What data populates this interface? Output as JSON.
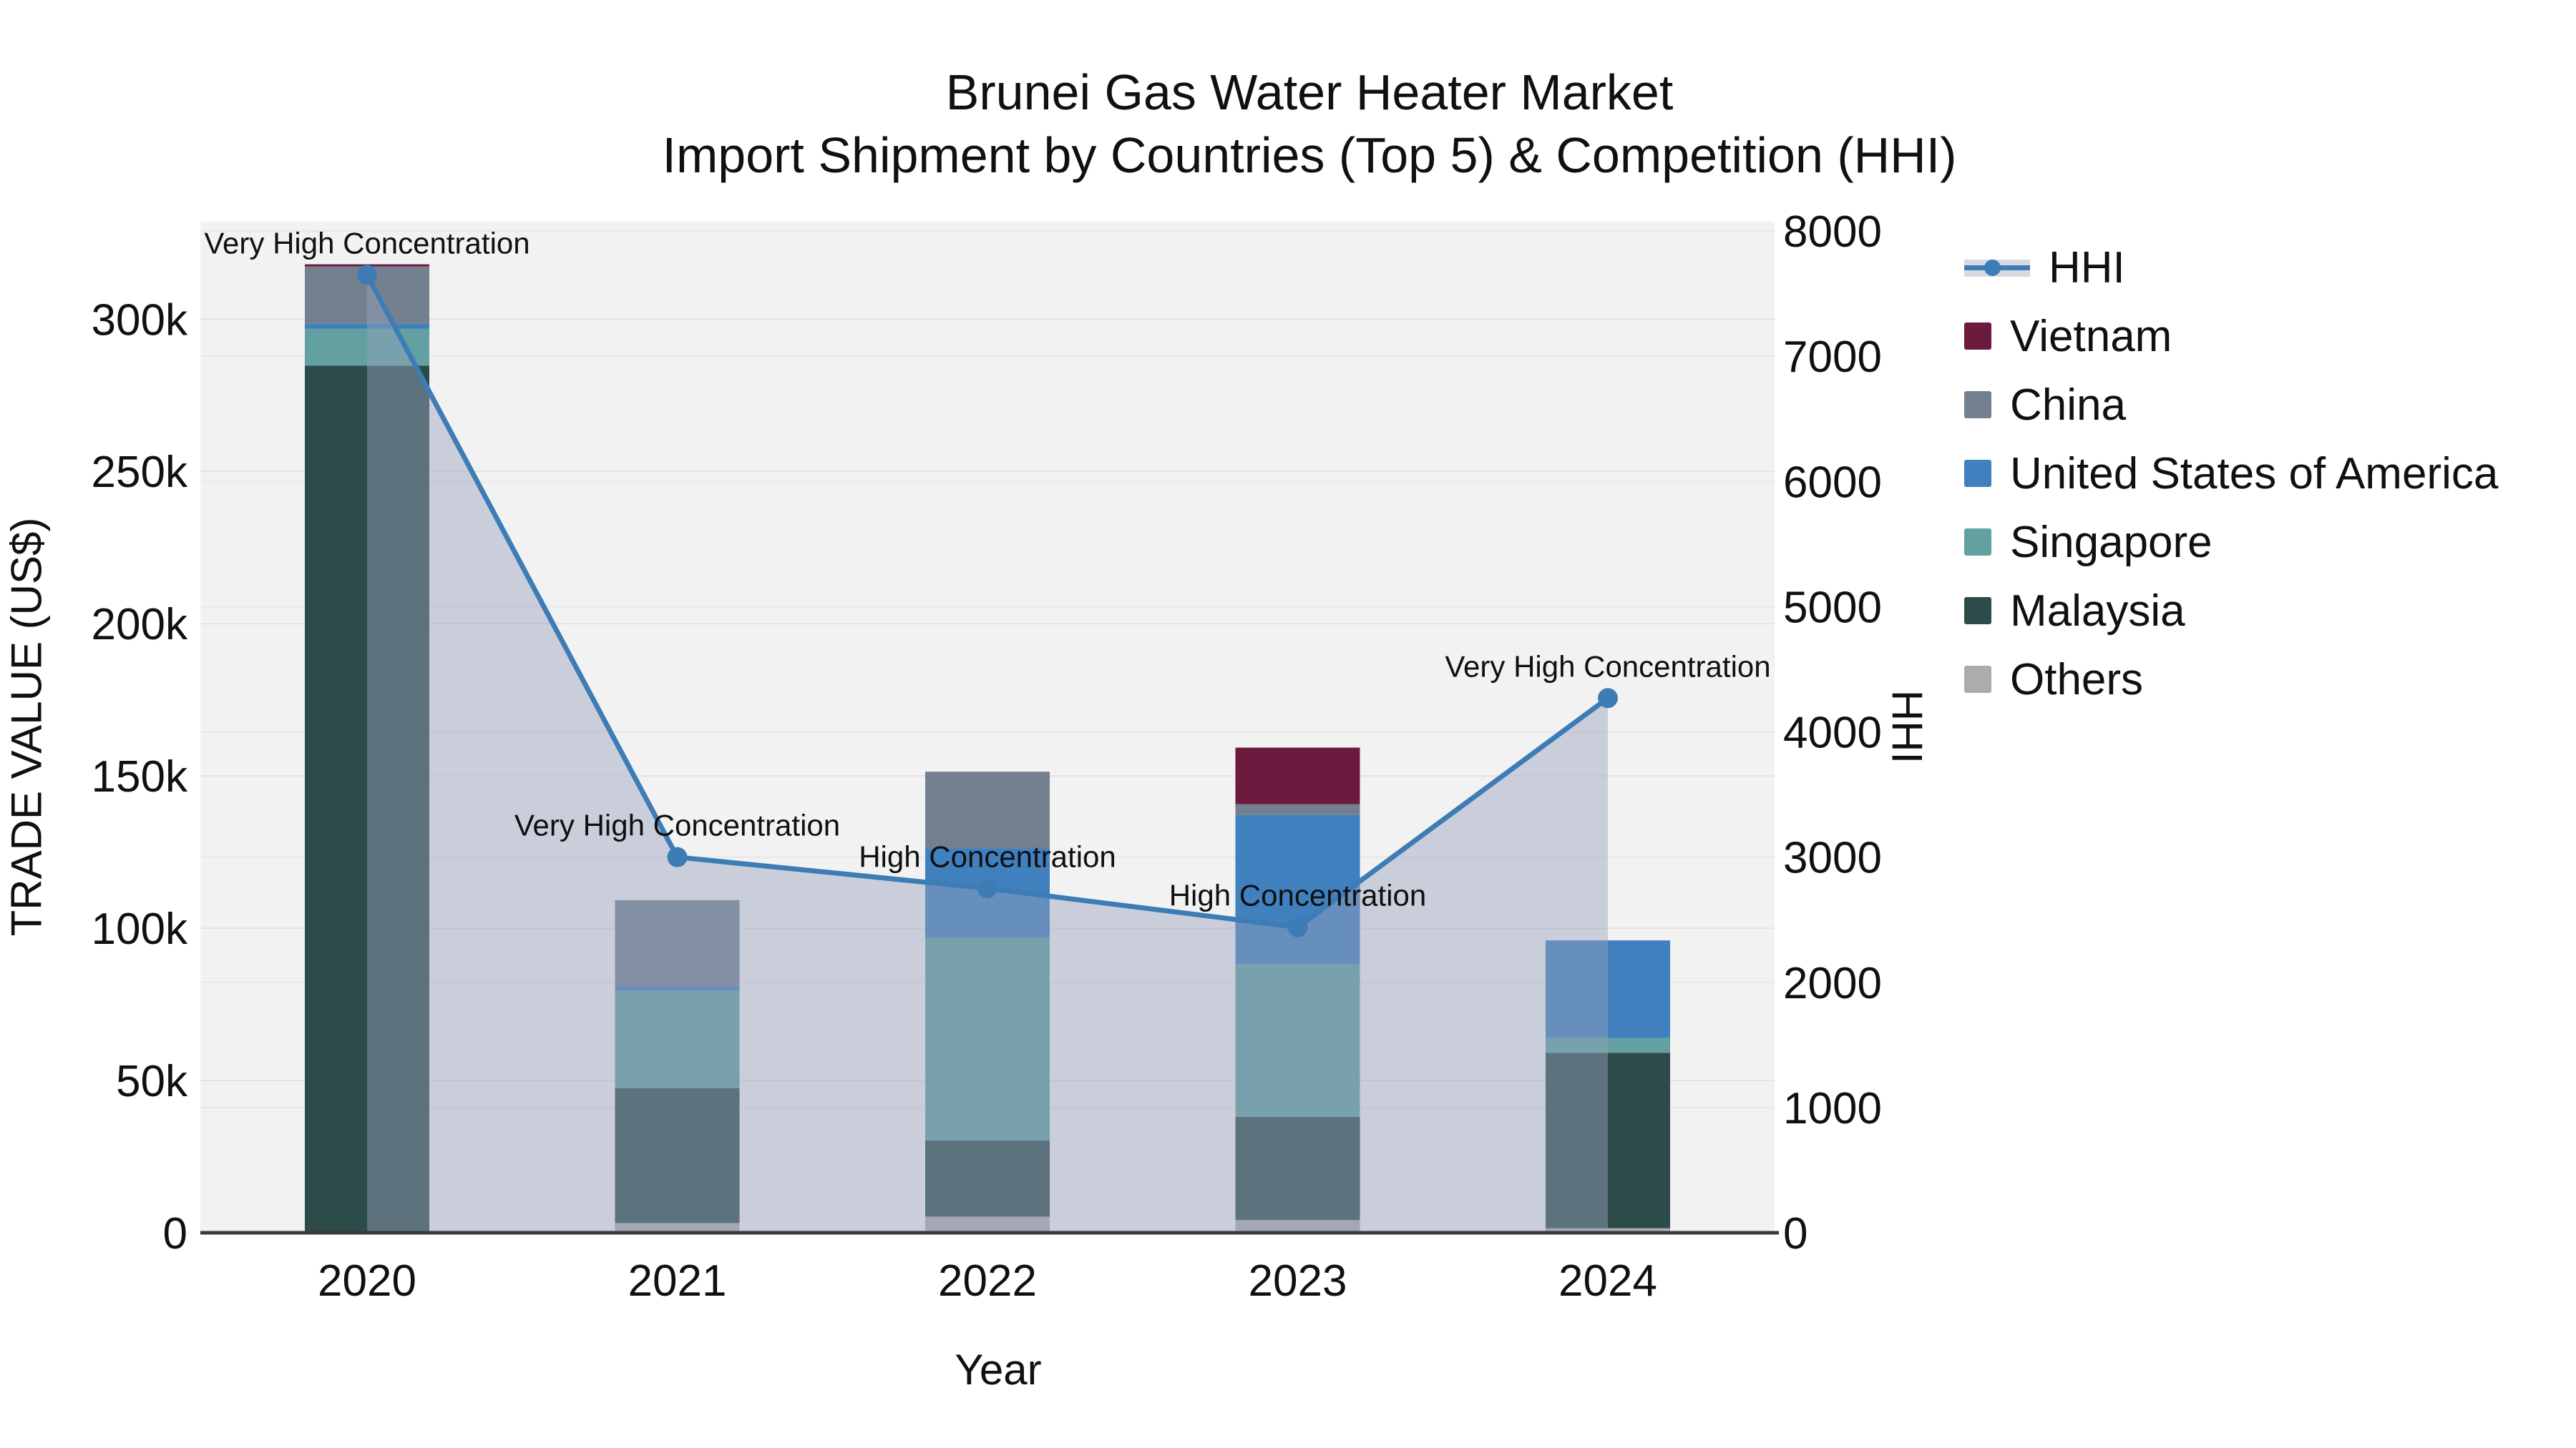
{
  "title": {
    "line1": "Brunei Gas Water Heater Market",
    "line2": "Import Shipment by Countries (Top 5) & Competition (HHI)"
  },
  "axes": {
    "left": {
      "title": "TRADE VALUE (US$)",
      "tick_values": [
        0,
        50000,
        100000,
        150000,
        200000,
        250000,
        300000
      ],
      "tick_labels": [
        "0",
        "50k",
        "100k",
        "150k",
        "200k",
        "250k",
        "300k"
      ],
      "max": 332000
    },
    "right": {
      "title": "HHI",
      "tick_values": [
        0,
        1000,
        2000,
        3000,
        4000,
        5000,
        6000,
        7000,
        8000
      ],
      "tick_labels": [
        "0",
        "1000",
        "2000",
        "3000",
        "4000",
        "5000",
        "6000",
        "7000",
        "8000"
      ],
      "max": 8075
    },
    "x": {
      "title": "Year"
    }
  },
  "legend": {
    "position": "right",
    "items": [
      {
        "label": "HHI",
        "type": "line",
        "color": "#3E7CB6",
        "band": "#D5DAE0"
      },
      {
        "label": "Vietnam",
        "type": "box",
        "color": "#6B1B3E"
      },
      {
        "label": "China",
        "type": "box",
        "color": "#73808F"
      },
      {
        "label": "United States of America",
        "type": "box",
        "color": "#4180BE"
      },
      {
        "label": "Singapore",
        "type": "box",
        "color": "#62A0A1"
      },
      {
        "label": "Malaysia",
        "type": "box",
        "color": "#2D4B49"
      },
      {
        "label": "Others",
        "type": "box",
        "color": "#ACACAC"
      }
    ]
  },
  "chart_data": {
    "type": "bar",
    "subtype": "stacked bars (trade value, left axis) + HHI line with shaded area (right axis)",
    "title": "Brunei Gas Water Heater Market — Import Shipment by Countries (Top 5) & Competition (HHI)",
    "categories": [
      "2020",
      "2021",
      "2022",
      "2023",
      "2024"
    ],
    "series": [
      {
        "name": "Vietnam",
        "color": "#6B1B3E",
        "values": [
          700,
          0,
          0,
          18600,
          0
        ]
      },
      {
        "name": "China",
        "color": "#73808F",
        "values": [
          18800,
          28300,
          25100,
          3500,
          0
        ]
      },
      {
        "name": "United States of America",
        "color": "#4180BE",
        "values": [
          1600,
          1400,
          29500,
          48900,
          32000
        ]
      },
      {
        "name": "Singapore",
        "color": "#62A0A1",
        "values": [
          12200,
          32000,
          66500,
          50200,
          4900
        ]
      },
      {
        "name": "Malaysia",
        "color": "#2D4B49",
        "values": [
          284700,
          44300,
          25000,
          33900,
          57600
        ]
      },
      {
        "name": "Others",
        "color": "#ACACAC",
        "values": [
          0,
          3200,
          5300,
          4200,
          1500
        ]
      }
    ],
    "stack_order_bottom_to_top": [
      "Others",
      "Malaysia",
      "Singapore",
      "United States of America",
      "China",
      "Vietnam"
    ],
    "bar_totals": [
      318000,
      109200,
      151400,
      159300,
      96000
    ],
    "line_series": {
      "name": "HHI",
      "axis": "right",
      "color": "#3E7CB6",
      "area_fill": "rgba(151,162,189,0.45)",
      "values": [
        7650,
        3000,
        2750,
        2440,
        4270
      ]
    },
    "annotations": [
      {
        "year": "2020",
        "text": "Very High Concentration"
      },
      {
        "year": "2021",
        "text": "Very High Concentration"
      },
      {
        "year": "2022",
        "text": "High Concentration"
      },
      {
        "year": "2023",
        "text": "High Concentration"
      },
      {
        "year": "2024",
        "text": "Very High Concentration"
      }
    ],
    "xlabel": "Year",
    "ylabel": "TRADE VALUE (US$)",
    "y2label": "HHI",
    "ylim": [
      0,
      332000
    ],
    "y2lim": [
      0,
      8075
    ],
    "grid": true,
    "legend_position": "right"
  },
  "colors": {
    "plot_bg": "#F2F2F2",
    "grid": "#E3E3E3",
    "axis_line": "#3B3B3B",
    "text": "#101010"
  }
}
